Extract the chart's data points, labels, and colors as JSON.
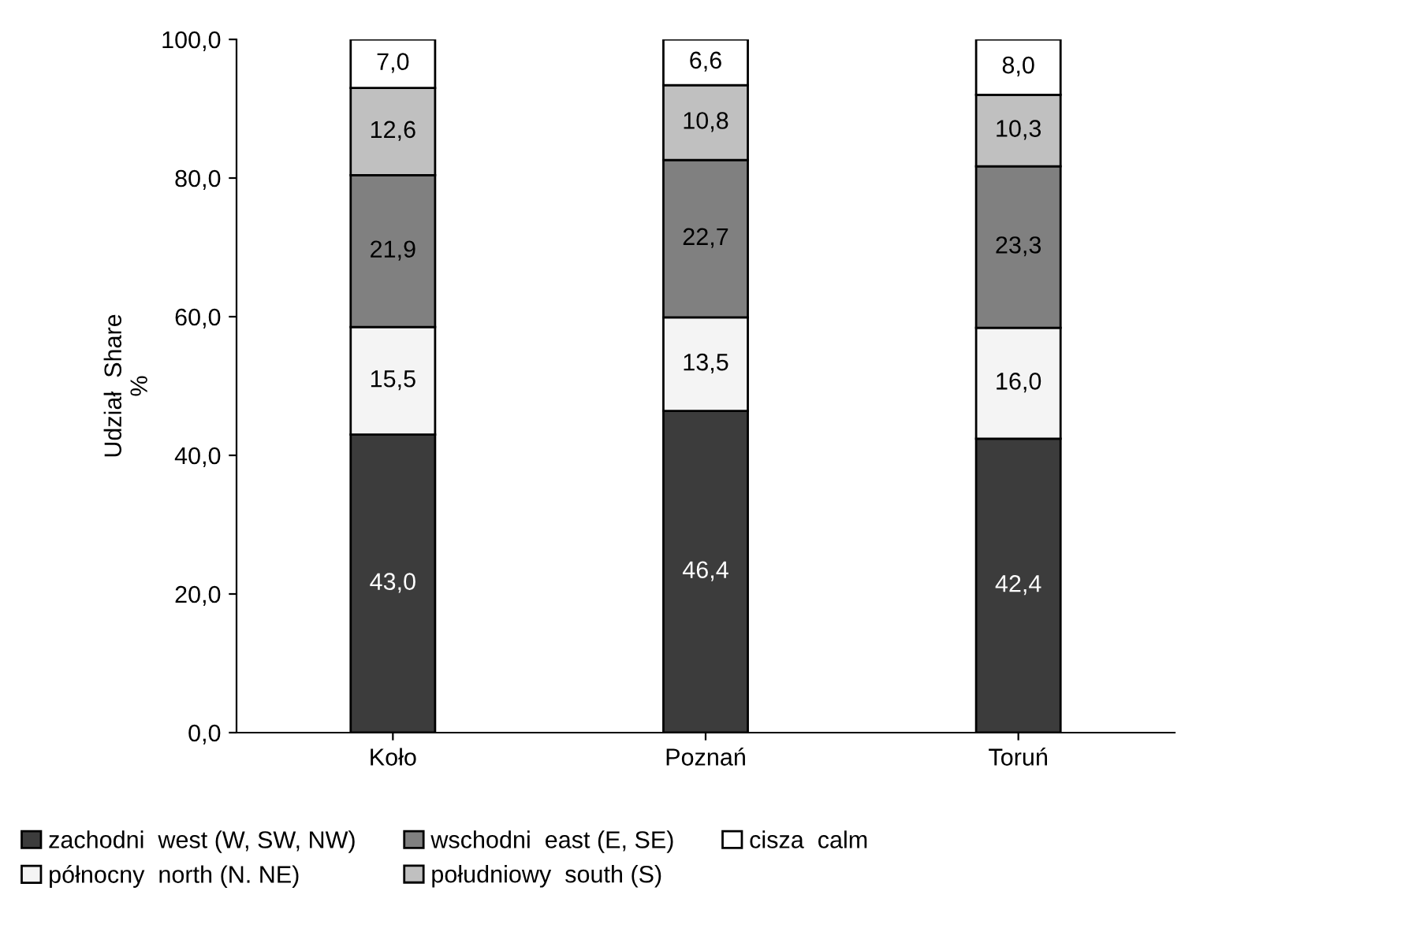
{
  "chart_data": {
    "type": "bar",
    "stacked": true,
    "ylabel": "Udział  Share\n%",
    "categories": [
      "Koło",
      "Poznań",
      "Toruń"
    ],
    "ylim": [
      0,
      100
    ],
    "yticks": [
      {
        "value": 0,
        "label": "0,0"
      },
      {
        "value": 20,
        "label": "20,0"
      },
      {
        "value": 40,
        "label": "40,0"
      },
      {
        "value": 60,
        "label": "60,0"
      },
      {
        "value": 80,
        "label": "80,0"
      },
      {
        "value": 100,
        "label": "100,0"
      }
    ],
    "legend": "bottom",
    "grid": false,
    "series": [
      {
        "name": "zachodni  west (W, SW, NW)",
        "color": "#3c3c3c",
        "values": [
          43.0,
          46.4,
          42.4
        ],
        "value_labels": [
          "43,0",
          "46,4",
          "42,4"
        ]
      },
      {
        "name": "północny  north (N. NE)",
        "color": "#f4f4f4",
        "values": [
          15.5,
          13.5,
          16.0
        ],
        "value_labels": [
          "15,5",
          "13,5",
          "16,0"
        ]
      },
      {
        "name": "wschodni  east (E, SE)",
        "color": "#808080",
        "values": [
          21.9,
          22.7,
          23.3
        ],
        "value_labels": [
          "21,9",
          "22,7",
          "23,3"
        ]
      },
      {
        "name": "południowy  south (S)",
        "color": "#c0c0c0",
        "values": [
          12.6,
          10.8,
          10.3
        ],
        "value_labels": [
          "12,6",
          "10,8",
          "10,3"
        ]
      },
      {
        "name": "cisza  calm",
        "color": "#ffffff",
        "values": [
          7.0,
          6.6,
          8.0
        ],
        "value_labels": [
          "7,0",
          "6,6",
          "8,0"
        ]
      }
    ]
  }
}
